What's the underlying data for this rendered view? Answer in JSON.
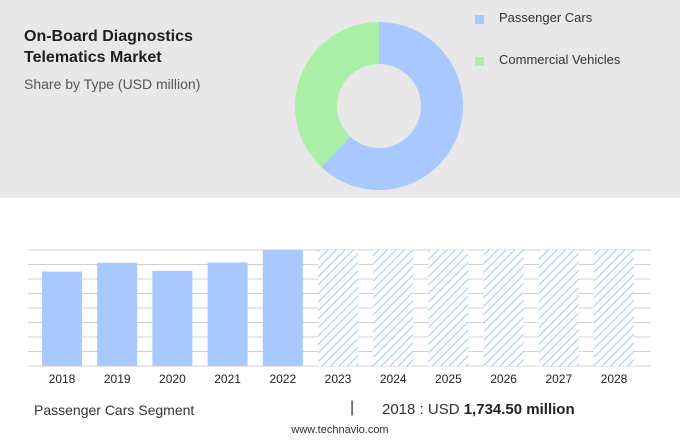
{
  "header": {
    "title_line1": "On-Board Diagnostics",
    "title_line2": "Telematics Market",
    "subtitle": "Share by Type (USD million)"
  },
  "colors": {
    "passenger": "#a8c8ff",
    "commercial": "#aaeea8",
    "hatch": "#a8c8ff",
    "panel": "#e8e8e8",
    "gridline": "#d0d0d0"
  },
  "chart_data": [
    {
      "type": "pie",
      "variant": "donut",
      "series": [
        {
          "name": "Passenger Cars",
          "share": 0.62
        },
        {
          "name": "Commercial Vehicles",
          "share": 0.38
        }
      ],
      "legend_placement": "top-right"
    },
    {
      "type": "bar",
      "categories": [
        "2018",
        "2019",
        "2020",
        "2021",
        "2022",
        "2023",
        "2024",
        "2025",
        "2026",
        "2027",
        "2028"
      ],
      "values": [
        1734.5,
        1895,
        1748,
        1900,
        2130,
        2130,
        2130,
        2130,
        2130,
        2130,
        2130
      ],
      "forecast_from_index": 5,
      "ylim": [
        0,
        2130
      ],
      "grid": true
    }
  ],
  "footer": {
    "segment_label": "Passenger Cars Segment",
    "divider": "|",
    "value_prefix": "2018 : USD",
    "value_bold": "1,734.50 million",
    "url": "www.technavio.com"
  }
}
